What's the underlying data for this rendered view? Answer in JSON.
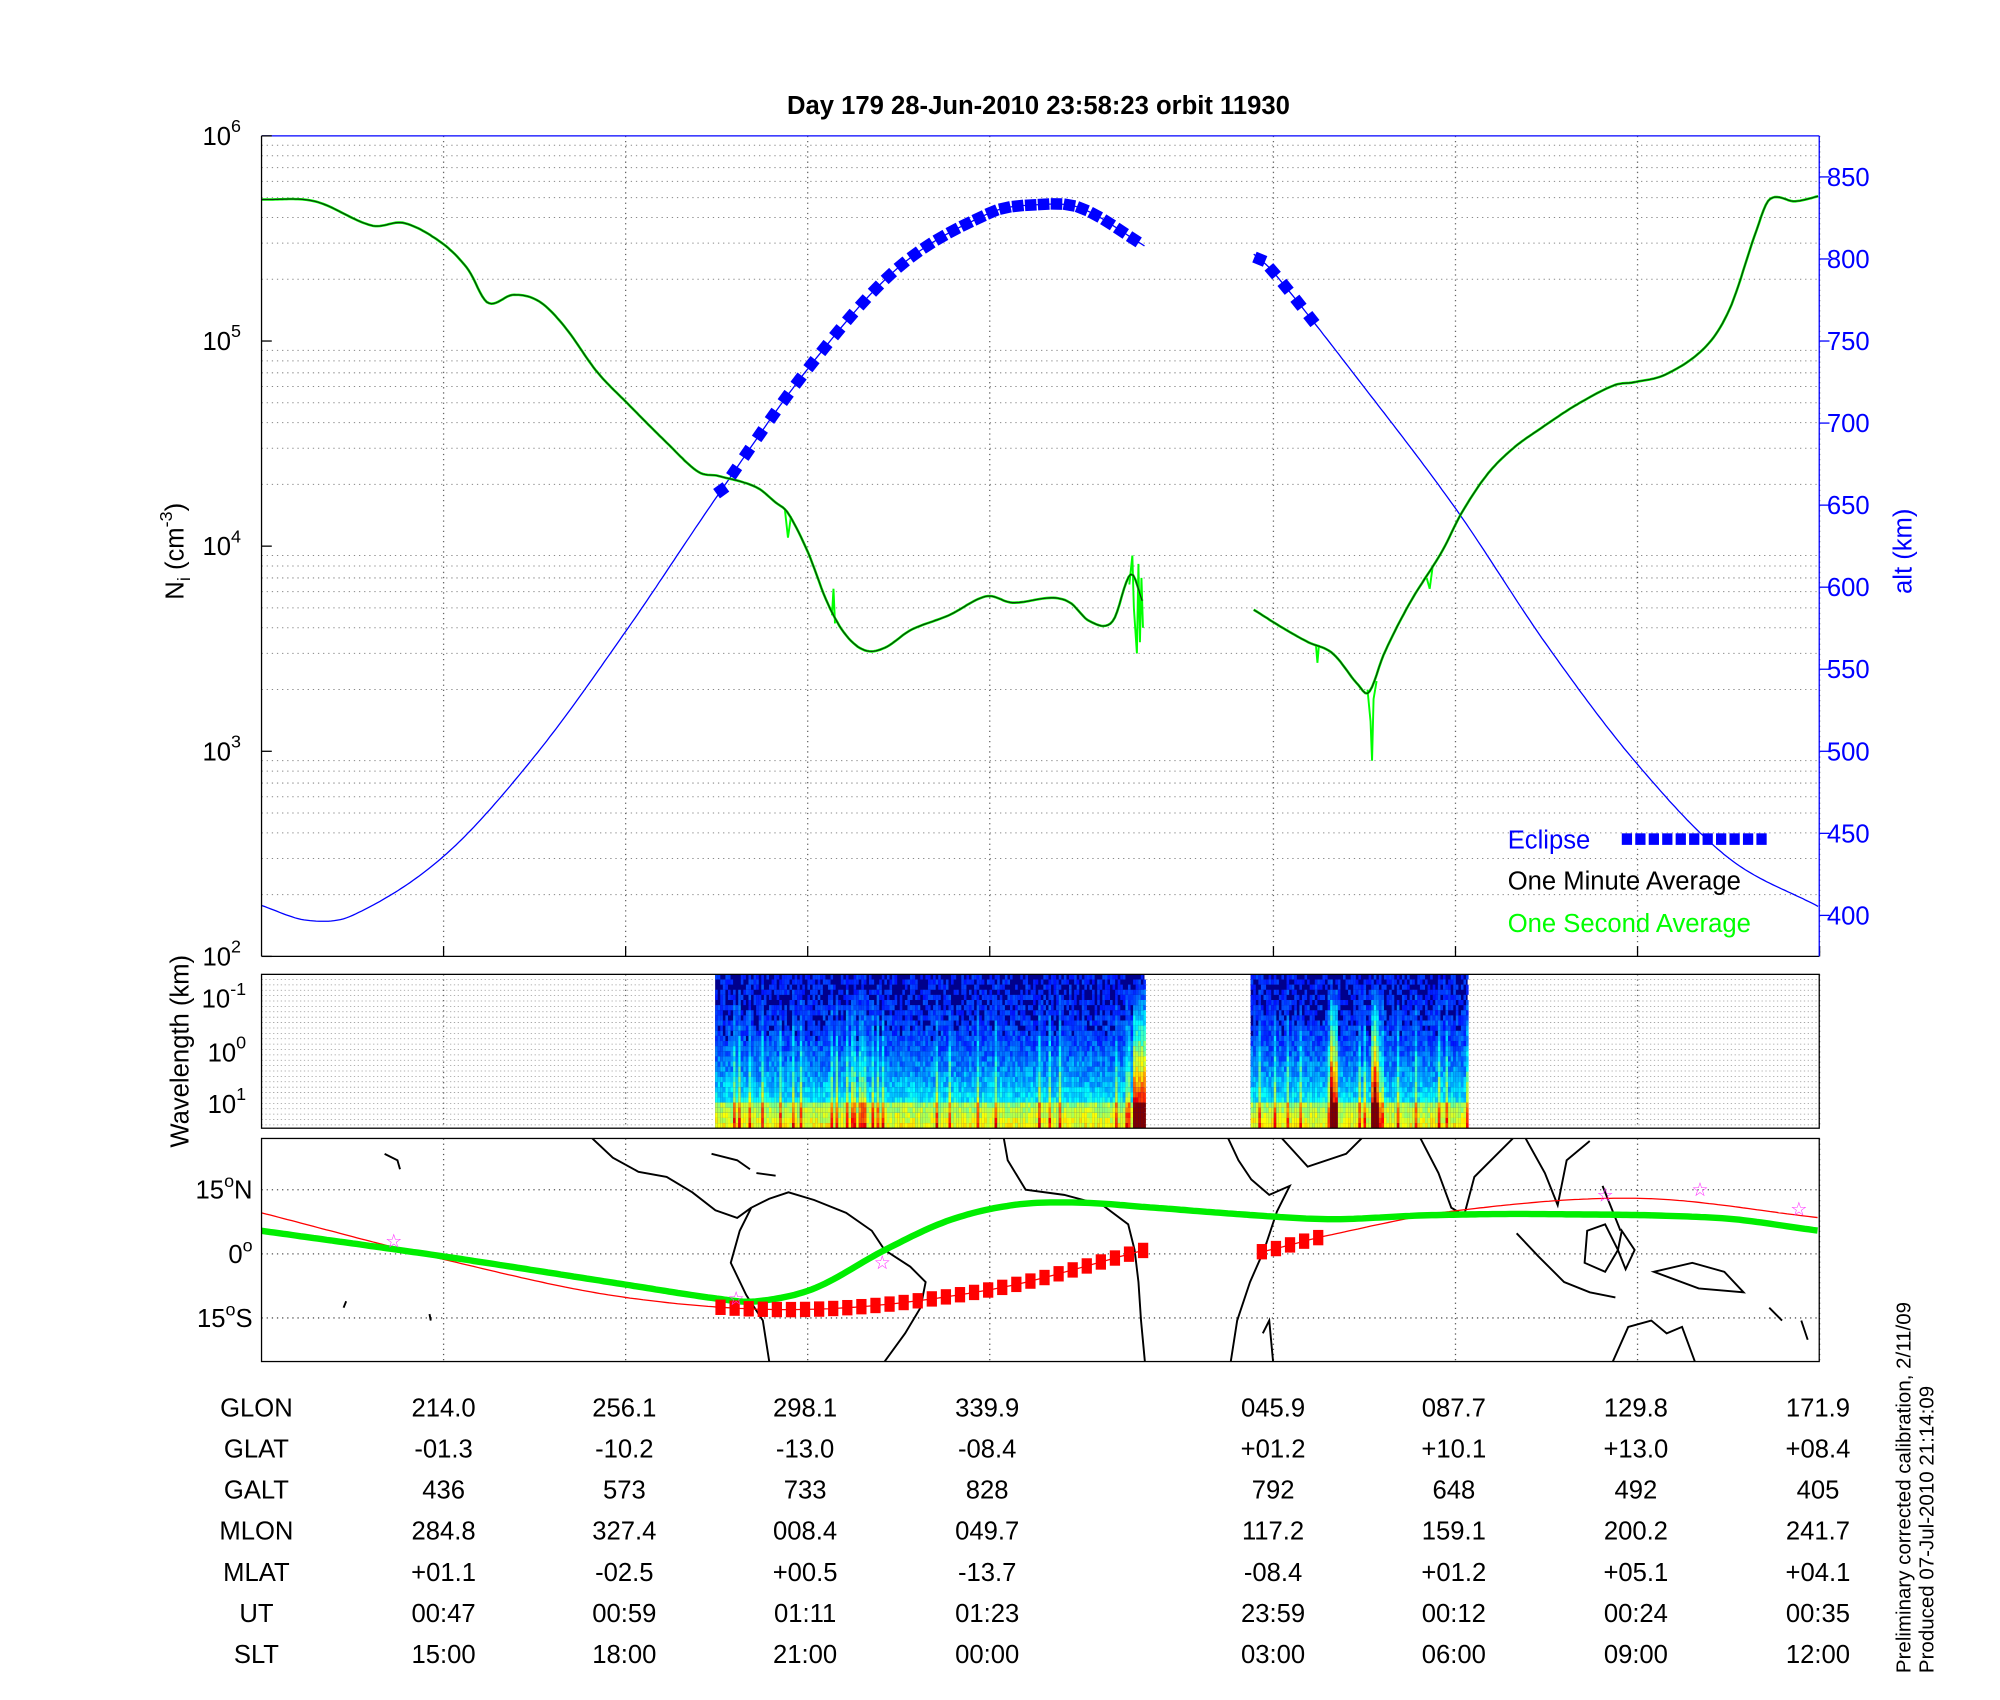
{
  "title": "Day 179  28-Jun-2010 23:58:23   orbit 11930",
  "footnote": [
    "Preliminary corrected calibration, 2/11/09",
    "Produced 07-Jul-2010 21:14:09"
  ],
  "colors": {
    "eclipse": "#0000ff",
    "one_minute": "#0b3d0b",
    "one_second": "#00ff00",
    "altitude": "#0000ff",
    "track": "#ff0000",
    "dip_equator": "#00ee00",
    "marker": "#ff33ff"
  },
  "chart_data": [
    {
      "type": "line",
      "title": "Day 179  28-Jun-2010 23:58:23   orbit 11930",
      "xlabel": "",
      "x_units": "minutes from plot start",
      "xlim": [
        0,
        102.7
      ],
      "x_ticks": [
        12,
        24,
        36,
        48,
        66.7,
        78.7,
        90.7,
        102.7
      ],
      "ylabel": {
        "base": "N",
        "sub": "i",
        "mid": " (cm",
        "sup": "-3",
        "end": ")"
      },
      "yscale": "log",
      "ylim": [
        100,
        1000000
      ],
      "y_ticks": [
        {
          "base": "10",
          "exp": "2"
        },
        {
          "base": "10",
          "exp": "3"
        },
        {
          "base": "10",
          "exp": "4"
        },
        {
          "base": "10",
          "exp": "5"
        },
        {
          "base": "10",
          "exp": "6"
        }
      ],
      "y2label": "alt (km)",
      "y2lim": [
        382,
        882
      ],
      "y2_ticks": [
        "850",
        "800",
        "750",
        "700",
        "650",
        "600",
        "550",
        "500",
        "450",
        "400"
      ],
      "grid": true,
      "legend": {
        "position": "bottom-right",
        "entries": [
          "Eclipse",
          "One Minute Average",
          "One Second Average"
        ]
      },
      "series": [
        {
          "name": "One Minute Average",
          "segments": [
            [
              [
                0,
                490000
              ],
              [
                3.5,
                480000
              ],
              [
                7.3,
                365000
              ],
              [
                9.4,
                376000
              ],
              [
                11.9,
                300000
              ],
              [
                13.6,
                224000
              ],
              [
                14.9,
                154000
              ],
              [
                16.6,
                168000
              ],
              [
                18.3,
                156000
              ],
              [
                20.0,
                117000
              ],
              [
                22.1,
                71000
              ],
              [
                24.2,
                49000
              ],
              [
                26.7,
                32000
              ],
              [
                28.8,
                23000
              ],
              [
                30.1,
                22000
              ],
              [
                32.6,
                19400
              ],
              [
                33.9,
                16300
              ],
              [
                34.7,
                14500
              ],
              [
                36.0,
                9400
              ],
              [
                37.3,
                5300
              ],
              [
                38.5,
                3700
              ],
              [
                39.8,
                3100
              ],
              [
                41.1,
                3200
              ],
              [
                42.8,
                3900
              ],
              [
                45.3,
                4600
              ],
              [
                47.8,
                5700
              ],
              [
                49.5,
                5300
              ],
              [
                52.1,
                5600
              ],
              [
                53.3,
                5300
              ],
              [
                54.6,
                4300
              ],
              [
                56.1,
                4300
              ],
              [
                57.3,
                7300
              ],
              [
                58.1,
                5300
              ]
            ],
            [
              [
                65.4,
                4900
              ],
              [
                67.3,
                4000
              ],
              [
                69.0,
                3400
              ],
              [
                70.6,
                3000
              ],
              [
                72.3,
                2100
              ],
              [
                73.0,
                1940
              ],
              [
                74.0,
                3000
              ],
              [
                75.7,
                5300
              ],
              [
                77.8,
                9400
              ],
              [
                79.1,
                14500
              ],
              [
                80.8,
                22400
              ],
              [
                82.5,
                30000
              ],
              [
                84.2,
                37000
              ],
              [
                86.7,
                49000
              ],
              [
                89.2,
                61000
              ],
              [
                90.5,
                63000
              ],
              [
                92.6,
                69000
              ],
              [
                95.2,
                94000
              ],
              [
                96.8,
                145000
              ],
              [
                98.5,
                340000
              ],
              [
                99.4,
                490000
              ],
              [
                101.1,
                480000
              ],
              [
                102.7,
                510000
              ]
            ]
          ]
        },
        {
          "name": "One Second Average",
          "spikes": [
            [
              [
                34.5,
                15000
              ],
              [
                34.7,
                11000
              ],
              [
                34.9,
                14000
              ]
            ],
            [
              [
                37.6,
                4600
              ],
              [
                37.7,
                6200
              ],
              [
                37.8,
                4200
              ]
            ],
            [
              [
                57.2,
                6500
              ],
              [
                57.4,
                9000
              ],
              [
                57.5,
                5000
              ],
              [
                57.7,
                3000
              ],
              [
                57.8,
                8200
              ],
              [
                57.9,
                3400
              ],
              [
                58.0,
                7000
              ],
              [
                58.1,
                4000
              ]
            ],
            [
              [
                69.5,
                3300
              ],
              [
                69.6,
                2700
              ],
              [
                69.7,
                3300
              ]
            ],
            [
              [
                72.9,
                2000
              ],
              [
                73.1,
                1400
              ],
              [
                73.2,
                900
              ],
              [
                73.3,
                1800
              ],
              [
                73.5,
                2200
              ]
            ],
            [
              [
                76.8,
                7000
              ],
              [
                77.0,
                6200
              ],
              [
                77.2,
                8000
              ]
            ]
          ]
        },
        {
          "name": "Altitude (km)",
          "axis": "right",
          "segments": [
            [
              [
                0,
                406
              ],
              [
                3,
                397
              ],
              [
                6,
                400
              ],
              [
                12,
                436
              ],
              [
                18,
                497
              ],
              [
                24,
                573
              ],
              [
                30,
                655
              ],
              [
                36,
                733
              ],
              [
                42,
                795
              ],
              [
                48,
                828
              ],
              [
                51,
                833
              ],
              [
                54,
                831
              ],
              [
                58.2,
                808
              ]
            ],
            [
              [
                65.4,
                803
              ],
              [
                66.7,
                792
              ],
              [
                72,
                730
              ],
              [
                78.7,
                648
              ],
              [
                84.7,
                565
              ],
              [
                90.7,
                492
              ],
              [
                96.7,
                435
              ],
              [
                102.7,
                405
              ]
            ]
          ]
        },
        {
          "name": "Eclipse",
          "axis": "right",
          "ranges": [
            [
              30.3,
              58.2
            ],
            [
              65.8,
              70.0
            ]
          ]
        }
      ]
    },
    {
      "type": "heatmap",
      "ylabel": "Wavelength (km)",
      "yscale": "log",
      "y_ticks": [
        {
          "base": "10",
          "exp": "-1"
        },
        {
          "base": "10",
          "exp": "0"
        },
        {
          "base": "10",
          "exp": "1"
        }
      ],
      "data_ranges": [
        [
          29.9,
          58.2
        ],
        [
          65.2,
          79.5
        ]
      ],
      "colormap": "jet"
    },
    {
      "type": "line",
      "name": "ground track map",
      "x_units": "geographic longitude (deg E, unwrapped)",
      "xlim": [
        172,
        531.4
      ],
      "ylim": [
        -25,
        27
      ],
      "y_ticks": [
        {
          "deg": "15",
          "hem": "N"
        },
        {
          "deg": "0",
          "hem": ""
        },
        {
          "deg": "15",
          "hem": "S"
        }
      ],
      "series": [
        {
          "name": "Satellite track",
          "segments": [
            [
              [
                172,
                9.6
              ],
              [
                214,
                -1.3
              ],
              [
                256,
                -10.2
              ],
              [
                298,
                -13.0
              ],
              [
                340,
                -8.4
              ],
              [
                375.8,
                0.9
              ]
            ],
            [
              [
                403,
                0.5
              ],
              [
                405.9,
                1.2
              ],
              [
                418,
                4.3
              ],
              [
                447.7,
                10.1
              ],
              [
                489.8,
                13.0
              ],
              [
                531.9,
                8.4
              ]
            ]
          ]
        },
        {
          "name": "Eclipse track",
          "ranges": [
            [
              277.9,
              375.8
            ],
            [
              402.8,
              417.6
            ]
          ]
        },
        {
          "name": "Dip equator",
          "points": [
            [
              172,
              5.4
            ],
            [
              214,
              -0.6
            ],
            [
              256,
              -7.2
            ],
            [
              277.3,
              -10.5
            ],
            [
              286.2,
              -11.1
            ],
            [
              299.5,
              -8.1
            ],
            [
              315.8,
              0.9
            ],
            [
              330.5,
              7.8
            ],
            [
              345.3,
              11.4
            ],
            [
              360.1,
              12.0
            ],
            [
              377.9,
              10.8
            ],
            [
              401.5,
              9.0
            ],
            [
              419.3,
              8.1
            ],
            [
              440,
              9.0
            ],
            [
              466.6,
              9.3
            ],
            [
              508,
              8.4
            ],
            [
              531.4,
              5.4
            ]
          ]
        },
        {
          "name": "Markers",
          "points": [
            [
              202.5,
              3.0
            ],
            [
              281.5,
              -10.5
            ],
            [
              315.2,
              -2.1
            ],
            [
              482,
              13.8
            ],
            [
              503.9,
              15.0
            ],
            [
              526.7,
              10.5
            ]
          ]
        }
      ]
    }
  ],
  "table": {
    "rows": [
      {
        "label": "GLON",
        "values": [
          "214.0",
          "256.1",
          "298.1",
          "339.9",
          "045.9",
          "087.7",
          "129.8",
          "171.9"
        ]
      },
      {
        "label": "GLAT",
        "values": [
          "-01.3",
          "-10.2",
          "-13.0",
          "-08.4",
          "+01.2",
          "+10.1",
          "+13.0",
          "+08.4"
        ]
      },
      {
        "label": "GALT",
        "values": [
          "436",
          "573",
          "733",
          "828",
          "792",
          "648",
          "492",
          "405"
        ]
      },
      {
        "label": "MLON",
        "values": [
          "284.8",
          "327.4",
          "008.4",
          "049.7",
          "117.2",
          "159.1",
          "200.2",
          "241.7"
        ]
      },
      {
        "label": "MLAT",
        "values": [
          "+01.1",
          "-02.5",
          "+00.5",
          "-13.7",
          "-08.4",
          "+01.2",
          "+05.1",
          "+04.1"
        ]
      },
      {
        "label": "UT",
        "values": [
          "00:47",
          "00:59",
          "01:11",
          "01:23",
          "23:59",
          "00:12",
          "00:24",
          "00:35"
        ]
      },
      {
        "label": "SLT",
        "values": [
          "15:00",
          "18:00",
          "21:00",
          "00:00",
          "03:00",
          "06:00",
          "09:00",
          "12:00"
        ]
      }
    ]
  }
}
